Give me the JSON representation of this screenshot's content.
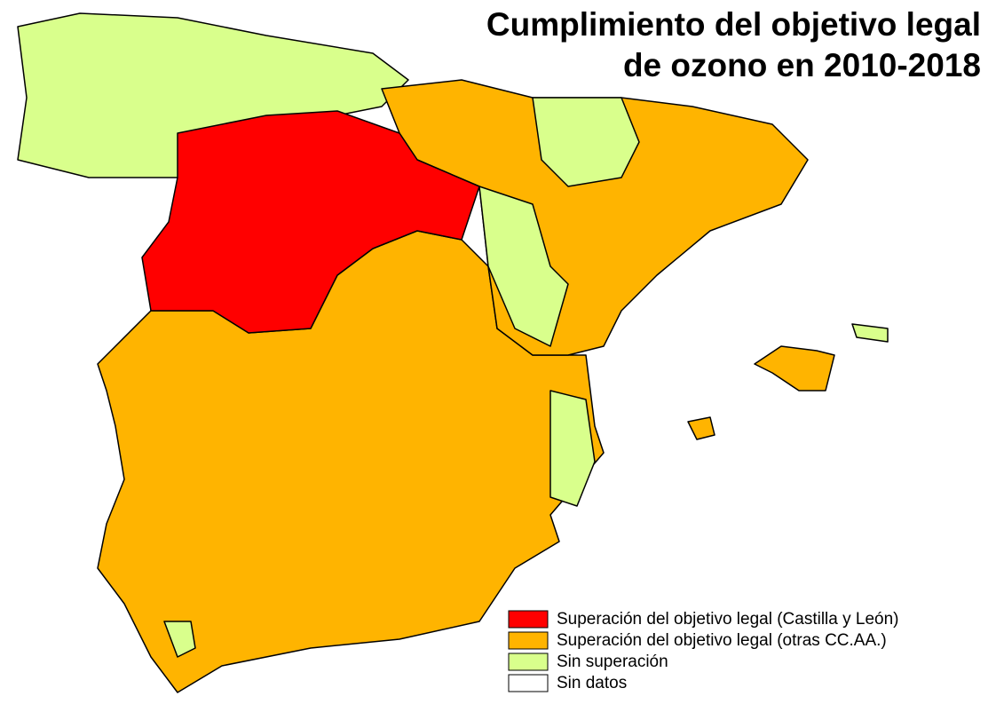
{
  "title": [
    "Cumplimiento del objetivo legal",
    "de ozono en 2010-2018"
  ],
  "legend": [
    {
      "label": "Superación del objetivo legal (Castilla y León)",
      "color": "#ff0000"
    },
    {
      "label": "Superación del objetivo legal (otras CC.AA.)",
      "color": "#ffb400"
    },
    {
      "label": "Sin superación",
      "color": "#d9ff8c"
    },
    {
      "label": "Sin datos",
      "color": "#ffffff"
    }
  ]
}
